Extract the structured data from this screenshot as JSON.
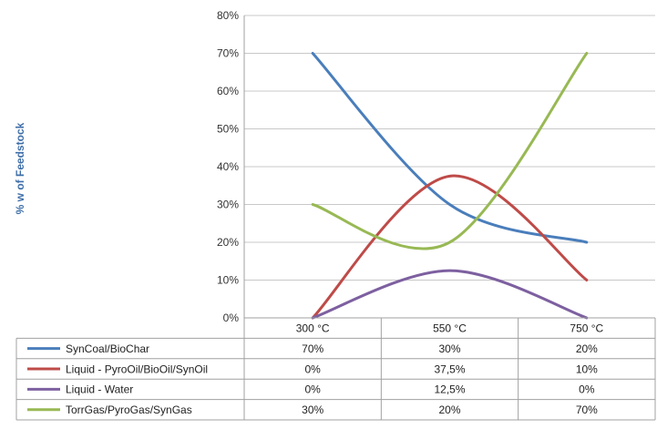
{
  "chart_data": {
    "type": "line",
    "categories": [
      "300 °C",
      "550 °C",
      "750 °C"
    ],
    "ylabel": "% w of Feedstock",
    "xlabel": "",
    "ylim": [
      0,
      80
    ],
    "yticks": [
      "0%",
      "10%",
      "20%",
      "30%",
      "40%",
      "50%",
      "60%",
      "70%",
      "80%"
    ],
    "grid": true,
    "series": [
      {
        "name": "SynCoal/BioChar",
        "values": [
          70,
          30,
          20
        ],
        "labels": [
          "70%",
          "30%",
          "20%"
        ],
        "color": "#4a7ebb"
      },
      {
        "name": "Liquid - PyroOil/BioOil/SynOil",
        "values": [
          0,
          37.5,
          10
        ],
        "labels": [
          "0%",
          "37,5%",
          "10%"
        ],
        "color": "#be4b48"
      },
      {
        "name": "Liquid - Water",
        "values": [
          0,
          12.5,
          0
        ],
        "labels": [
          "0%",
          "12,5%",
          "0%"
        ],
        "color": "#7d60a0"
      },
      {
        "name": "TorrGas/PyroGas/SynGas",
        "values": [
          30,
          20,
          70
        ],
        "labels": [
          "30%",
          "20%",
          "70%"
        ],
        "color": "#98b954"
      }
    ]
  }
}
